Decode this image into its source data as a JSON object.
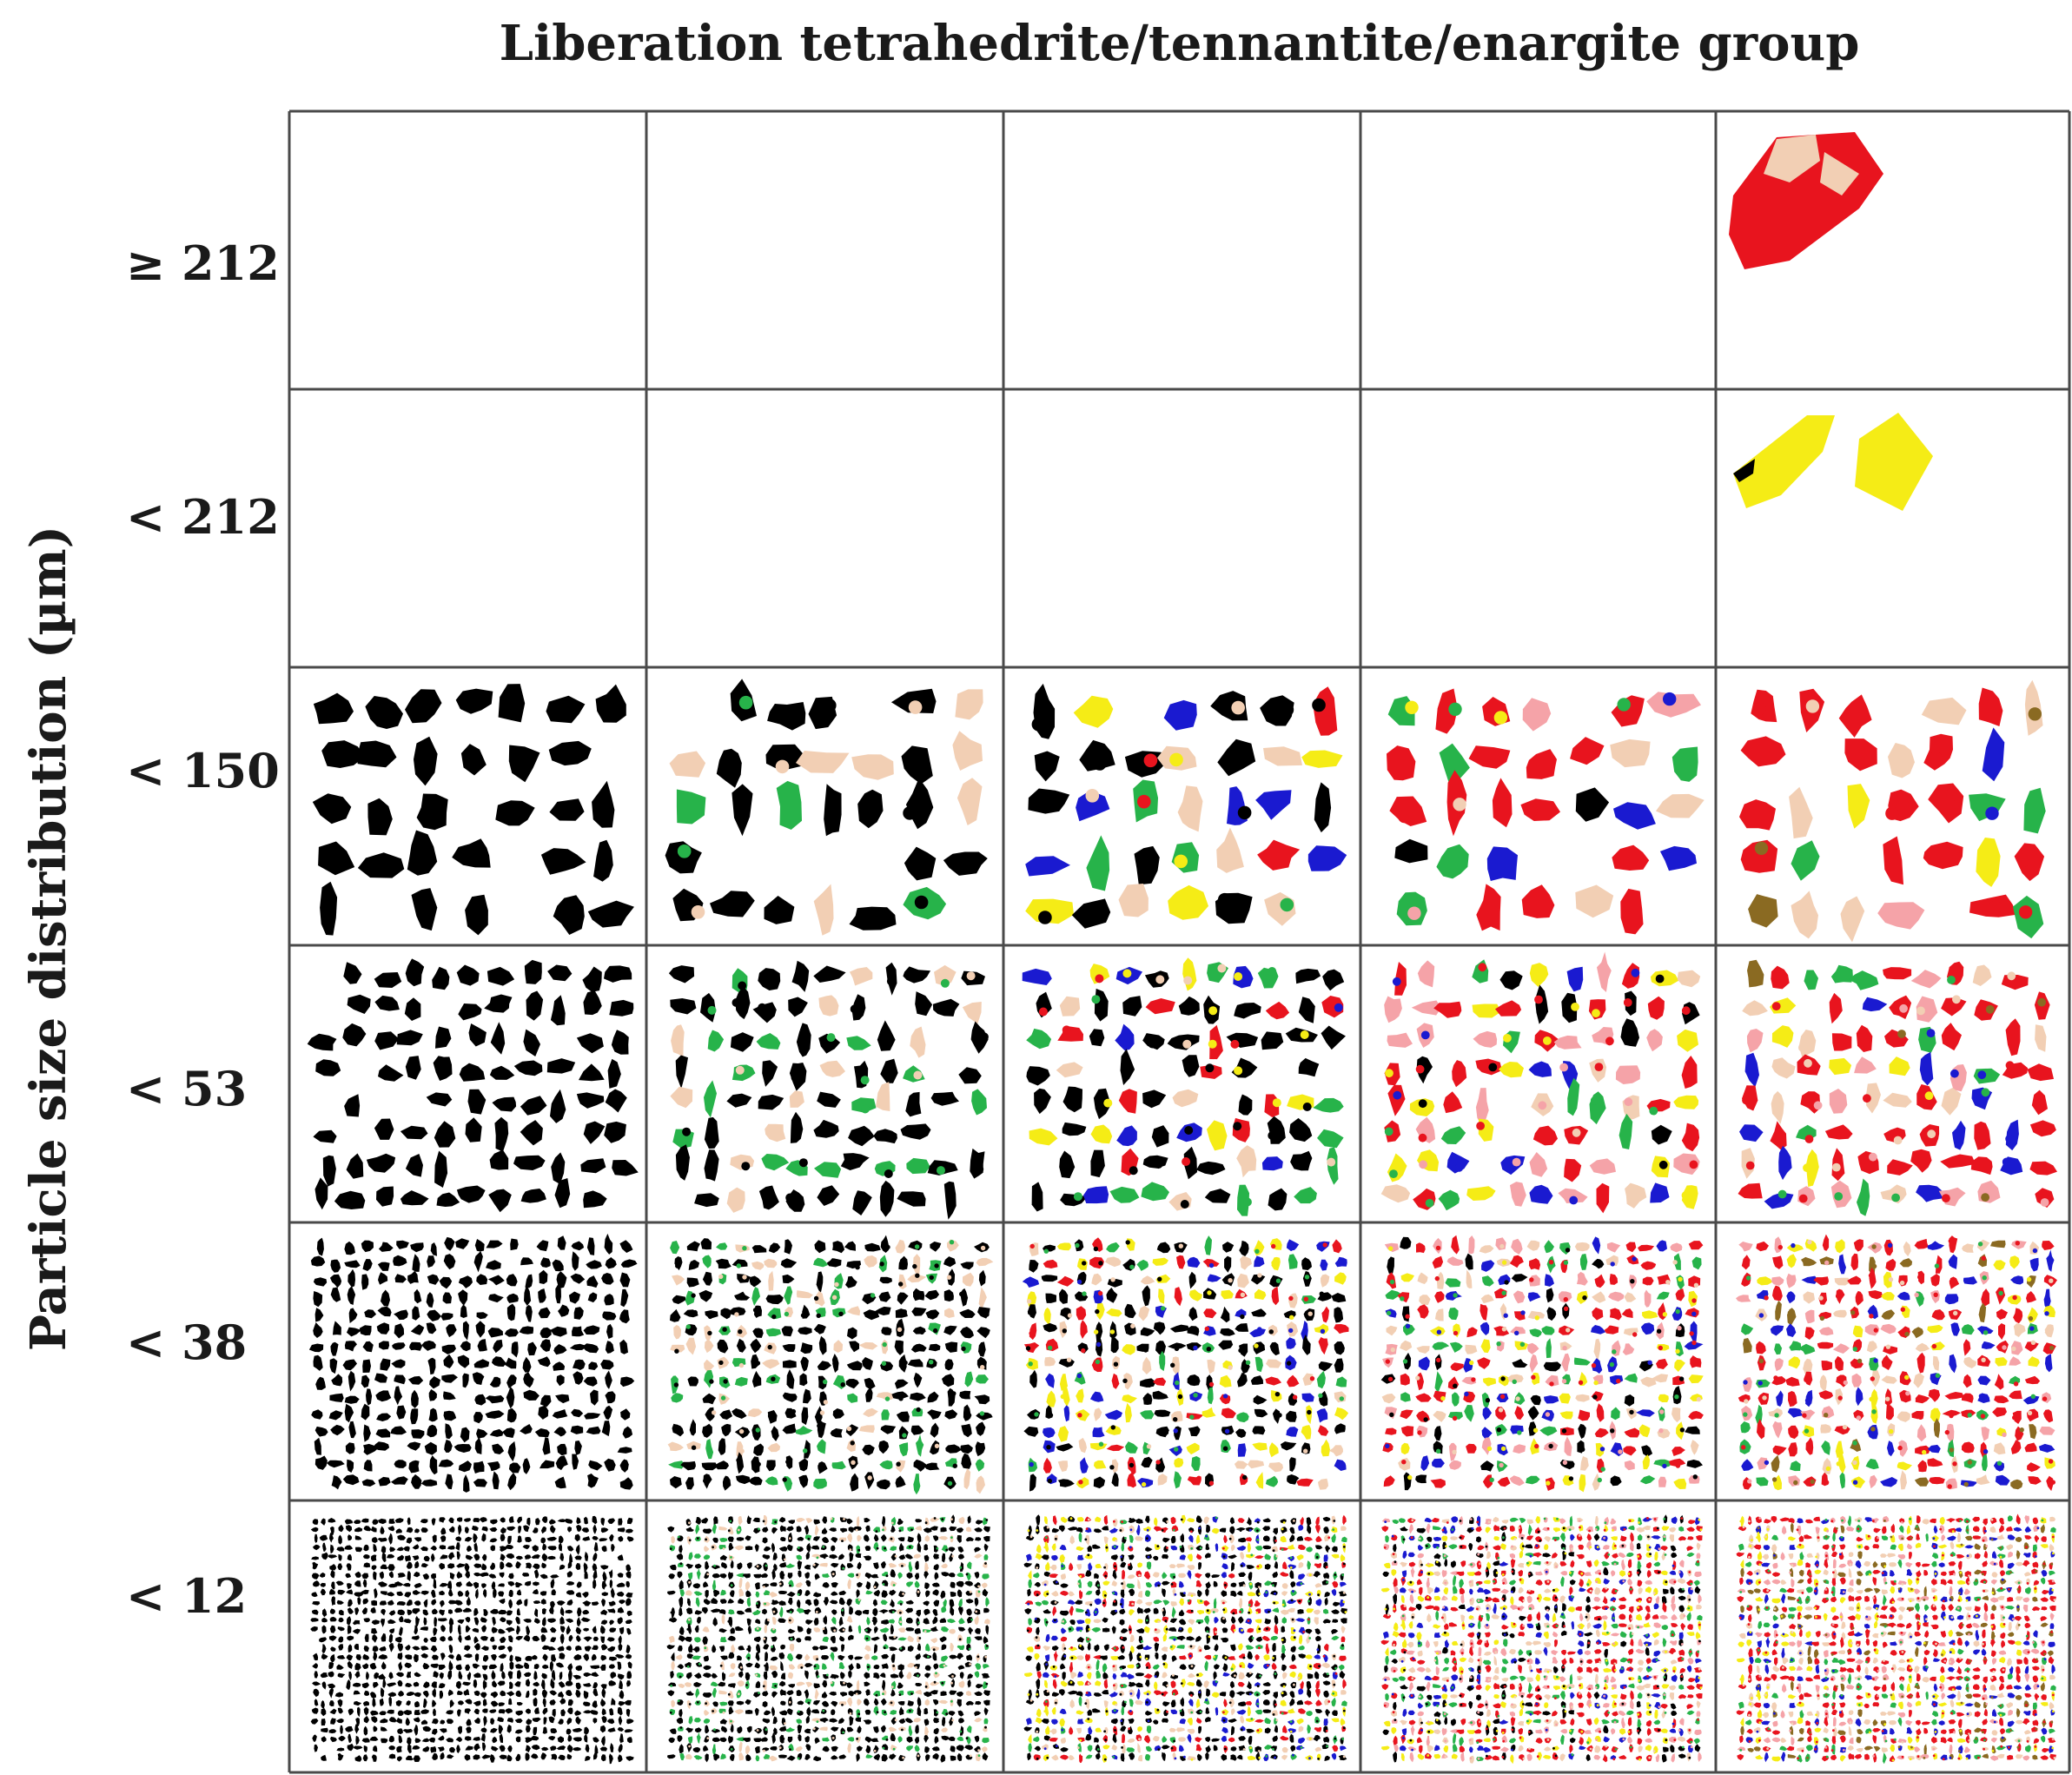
{
  "figure": {
    "title": "Liberation tetrahedrite/tennantite/enargite group",
    "y_axis_title": "Particle size distribution (µm)"
  },
  "rows": [
    {
      "label": "≥ 212",
      "density": 0,
      "cell_fill": [
        0,
        0,
        0,
        0,
        1
      ]
    },
    {
      "label": "< 212",
      "density": 0,
      "cell_fill": [
        0,
        0,
        0,
        0,
        1
      ]
    },
    {
      "label": "< 150",
      "density": 7,
      "cell_fill": [
        1,
        1,
        1,
        1,
        1
      ]
    },
    {
      "label": "< 53",
      "density": 11,
      "cell_fill": [
        1,
        1,
        1,
        1,
        1
      ]
    },
    {
      "label": "< 38",
      "density": 20,
      "cell_fill": [
        1,
        1,
        1,
        1,
        1
      ]
    },
    {
      "label": "< 12",
      "density": 38,
      "cell_fill": [
        1,
        1,
        1,
        1,
        1
      ]
    }
  ],
  "columns": 5,
  "phase_colors": {
    "black": "#000000",
    "red": "#e8141e",
    "yellow": "#f5ec16",
    "beige": "#f2cfb4",
    "pink": "#f5a3a8",
    "blue": "#1a1ad0",
    "green": "#27b34a",
    "brown": "#8a6a22",
    "gray": "#808080"
  },
  "column_palettes": [
    [
      "black"
    ],
    [
      "black",
      "black",
      "black",
      "black",
      "green",
      "beige"
    ],
    [
      "black",
      "black",
      "black",
      "yellow",
      "beige",
      "red",
      "blue",
      "green"
    ],
    [
      "red",
      "red",
      "black",
      "yellow",
      "beige",
      "pink",
      "blue",
      "green"
    ],
    [
      "red",
      "red",
      "red",
      "yellow",
      "beige",
      "pink",
      "blue",
      "green",
      "brown"
    ]
  ],
  "grid_line_color": "#4a4a4a"
}
